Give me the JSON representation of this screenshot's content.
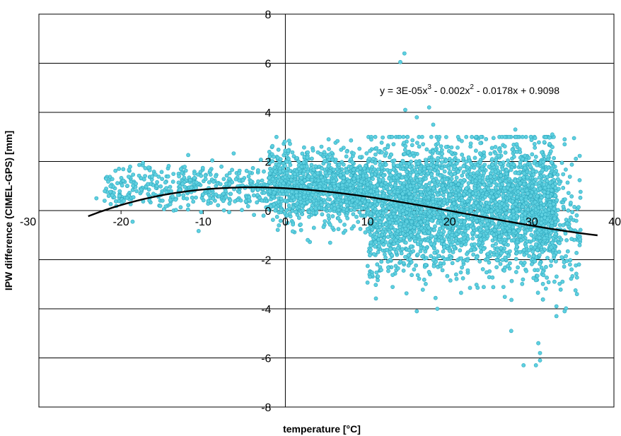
{
  "chart_data": {
    "type": "scatter",
    "title": "",
    "xlabel": "temperature [°C]",
    "ylabel": "IPW difference (CIMEL-GPS) [mm]",
    "xlim": [
      -30,
      40
    ],
    "ylim": [
      -8,
      8
    ],
    "x_ticks": [
      -30,
      -20,
      -10,
      0,
      10,
      20,
      30,
      40
    ],
    "y_ticks": [
      -8,
      -6,
      -4,
      -2,
      0,
      2,
      4,
      6,
      8
    ],
    "grid": {
      "horizontal": true,
      "vertical": false
    },
    "legend": "none",
    "marker_fill": "#5ED0E0",
    "marker_edge": "#2FA8BE",
    "trendline_color": "#000000",
    "trendline": {
      "type": "polynomial",
      "coefficients": [
        3e-05,
        -0.002,
        -0.0178,
        0.9098
      ],
      "x_range": [
        -24,
        38
      ]
    },
    "equation": {
      "prefix": "y = 3E-05x",
      "exp1": "3",
      "middle": " - 0.002x",
      "exp2": "2",
      "suffix": " - 0.0178x + 0.9098"
    },
    "series": [
      {
        "generator": "dense scatter of several thousand points",
        "clusters": [
          {
            "x_range": [
              -22,
              -2
            ],
            "y_mean": 0.9,
            "y_spread": 0.45,
            "count": 420
          },
          {
            "x_range": [
              -2,
              10
            ],
            "y_mean": 1.0,
            "y_spread": 0.7,
            "count": 1100
          },
          {
            "x_range": [
              10,
              33
            ],
            "y_mean": 0.2,
            "y_spread": 1.25,
            "count": 3200
          },
          {
            "x_range": [
              30,
              36
            ],
            "y_mean": -0.6,
            "y_spread": 1.4,
            "count": 220
          }
        ],
        "notable_points": [
          [
            14.5,
            6.4
          ],
          [
            14.0,
            6.05
          ],
          [
            14.6,
            4.1
          ],
          [
            17.5,
            4.2
          ],
          [
            16.0,
            3.8
          ],
          [
            18.0,
            3.5
          ],
          [
            28.0,
            3.3
          ],
          [
            32.5,
            3.1
          ],
          [
            34.0,
            2.9
          ],
          [
            34.0,
            2.7
          ],
          [
            29.0,
            -6.3
          ],
          [
            30.5,
            -6.3
          ],
          [
            31.0,
            -6.1
          ],
          [
            31.0,
            -5.8
          ],
          [
            30.8,
            -5.4
          ],
          [
            27.5,
            -4.9
          ],
          [
            33.0,
            -4.3
          ],
          [
            34.0,
            -4.1
          ],
          [
            16.0,
            -4.1
          ],
          [
            18.5,
            -4.0
          ],
          [
            33.0,
            -3.9
          ],
          [
            35.5,
            -3.4
          ],
          [
            -22.0,
            0.4
          ],
          [
            -21.5,
            0.6
          ],
          [
            -23.0,
            0.5
          ]
        ]
      }
    ]
  }
}
